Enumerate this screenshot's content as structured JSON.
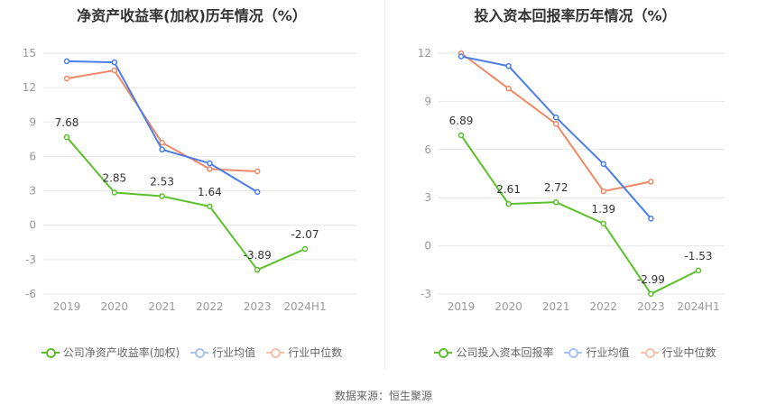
{
  "source_label": "数据来源：恒生聚源",
  "colors": {
    "company": "#5cc02c",
    "avg": "#4a7ee8",
    "median": "#f08a64",
    "grid": "#e6e6e6",
    "axis_text": "#999999",
    "label_text": "#333333"
  },
  "chart_data": [
    {
      "type": "line",
      "title": "净资产收益率(加权)历年情况（%）",
      "categories": [
        "2019",
        "2020",
        "2021",
        "2022",
        "2023",
        "2024H1"
      ],
      "yticks": [
        15,
        12,
        9,
        6,
        3,
        0,
        -3,
        -6
      ],
      "ylim": [
        -6,
        15
      ],
      "series": [
        {
          "name": "公司净资产收益率(加权)",
          "color_key": "company",
          "values": [
            7.68,
            2.85,
            2.53,
            1.64,
            -3.89,
            -2.07
          ],
          "labels": [
            "7.68",
            "2.85",
            "2.53",
            "1.64",
            "-3.89",
            "-2.07"
          ]
        },
        {
          "name": "行业均值",
          "color_key": "avg",
          "values": [
            14.3,
            14.2,
            6.6,
            5.4,
            2.9,
            null
          ]
        },
        {
          "name": "行业中位数",
          "color_key": "median",
          "values": [
            12.8,
            13.5,
            7.2,
            4.9,
            4.7,
            null
          ]
        }
      ],
      "grid": true,
      "legend_position": "bottom"
    },
    {
      "type": "line",
      "title": "投入资本回报率历年情况（%）",
      "categories": [
        "2019",
        "2020",
        "2021",
        "2022",
        "2023",
        "2024H1"
      ],
      "yticks": [
        12,
        9,
        6,
        3,
        0,
        -3
      ],
      "ylim": [
        -3,
        12
      ],
      "series": [
        {
          "name": "公司投入资本回报率",
          "color_key": "company",
          "values": [
            6.89,
            2.61,
            2.72,
            1.39,
            -2.99,
            -1.53
          ],
          "labels": [
            "6.89",
            "2.61",
            "2.72",
            "1.39",
            "-2.99",
            "-1.53"
          ]
        },
        {
          "name": "行业均值",
          "color_key": "avg",
          "values": [
            11.8,
            11.2,
            8.0,
            5.1,
            1.7,
            null
          ]
        },
        {
          "name": "行业中位数",
          "color_key": "median",
          "values": [
            12.0,
            9.8,
            7.6,
            3.4,
            4.0,
            null
          ]
        }
      ],
      "grid": true,
      "legend_position": "bottom"
    }
  ]
}
